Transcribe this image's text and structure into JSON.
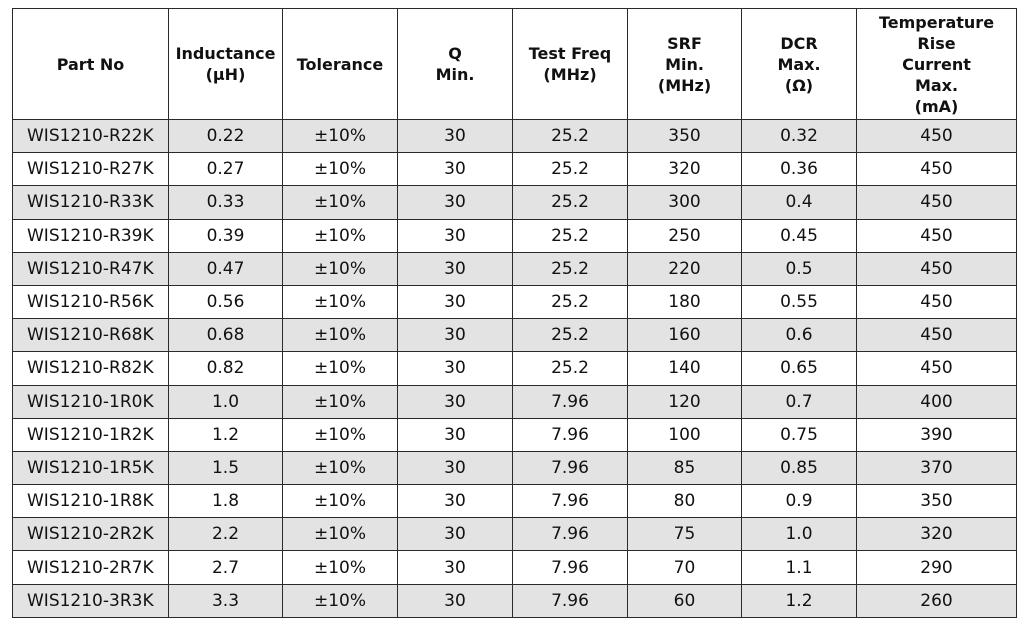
{
  "table": {
    "headers": [
      [
        "Part No"
      ],
      [
        "Inductance",
        "(µH)"
      ],
      [
        "Tolerance"
      ],
      [
        "Q",
        "Min."
      ],
      [
        "Test Freq",
        "(MHz)"
      ],
      [
        "SRF",
        "Min.",
        "(MHz)"
      ],
      [
        "DCR",
        "Max.",
        "(Ω)"
      ],
      [
        "Temperature Rise",
        "Current",
        "Max.",
        "(mA)"
      ]
    ],
    "rows": [
      [
        "WIS1210-R22K",
        "0.22",
        "±10%",
        "30",
        "25.2",
        "350",
        "0.32",
        "450"
      ],
      [
        "WIS1210-R27K",
        "0.27",
        "±10%",
        "30",
        "25.2",
        "320",
        "0.36",
        "450"
      ],
      [
        "WIS1210-R33K",
        "0.33",
        "±10%",
        "30",
        "25.2",
        "300",
        "0.4",
        "450"
      ],
      [
        "WIS1210-R39K",
        "0.39",
        "±10%",
        "30",
        "25.2",
        "250",
        "0.45",
        "450"
      ],
      [
        "WIS1210-R47K",
        "0.47",
        "±10%",
        "30",
        "25.2",
        "220",
        "0.5",
        "450"
      ],
      [
        "WIS1210-R56K",
        "0.56",
        "±10%",
        "30",
        "25.2",
        "180",
        "0.55",
        "450"
      ],
      [
        "WIS1210-R68K",
        "0.68",
        "±10%",
        "30",
        "25.2",
        "160",
        "0.6",
        "450"
      ],
      [
        "WIS1210-R82K",
        "0.82",
        "±10%",
        "30",
        "25.2",
        "140",
        "0.65",
        "450"
      ],
      [
        "WIS1210-1R0K",
        "1.0",
        "±10%",
        "30",
        "7.96",
        "120",
        "0.7",
        "400"
      ],
      [
        "WIS1210-1R2K",
        "1.2",
        "±10%",
        "30",
        "7.96",
        "100",
        "0.75",
        "390"
      ],
      [
        "WIS1210-1R5K",
        "1.5",
        "±10%",
        "30",
        "7.96",
        "85",
        "0.85",
        "370"
      ],
      [
        "WIS1210-1R8K",
        "1.8",
        "±10%",
        "30",
        "7.96",
        "80",
        "0.9",
        "350"
      ],
      [
        "WIS1210-2R2K",
        "2.2",
        "±10%",
        "30",
        "7.96",
        "75",
        "1.0",
        "320"
      ],
      [
        "WIS1210-2R7K",
        "2.7",
        "±10%",
        "30",
        "7.96",
        "70",
        "1.1",
        "290"
      ],
      [
        "WIS1210-3R3K",
        "3.3",
        "±10%",
        "30",
        "7.96",
        "60",
        "1.2",
        "260"
      ]
    ]
  },
  "colors": {
    "row_shade": "#e3e3e3",
    "row_plain": "#ffffff",
    "border": "#2a2a2a",
    "text": "#111111"
  }
}
